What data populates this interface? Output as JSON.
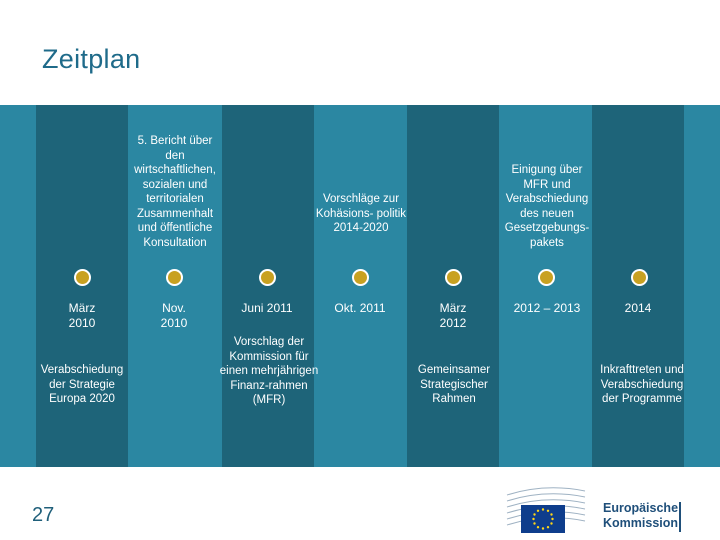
{
  "slide": {
    "title": "Zeitplan",
    "page_number": "27",
    "logo": {
      "line1": "Europäische",
      "line2": "Kommission"
    }
  },
  "timeline": [
    {
      "top": "",
      "date": "März 2010",
      "bottom": "Verabschiedung der Strategie Europa 2020"
    },
    {
      "top": "5. Bericht über den wirtschaftlichen, sozialen und territorialen Zusammenhalt und öffentliche Konsultation",
      "date": "Nov. 2010",
      "bottom": ""
    },
    {
      "top": "",
      "date": "Juni 2011",
      "bottom": "Vorschlag der Kommission für einen mehrjährigen Finanz-rahmen (MFR)"
    },
    {
      "top": "Vorschläge zur Kohäsions- politik 2014-2020",
      "date": "Okt. 2011",
      "bottom": ""
    },
    {
      "top": "",
      "date": "März 2012",
      "bottom": "Gemeinsamer Strategischer Rahmen"
    },
    {
      "top": "Einigung über MFR und Verabschiedung des neuen Gesetzgebungs- pakets",
      "date": "2012 – 2013",
      "bottom": ""
    },
    {
      "top": "",
      "date": "2014",
      "bottom": "Inkrafttreten und Verabschiedung der Programme"
    }
  ],
  "colors": {
    "light_band": "#2b87a2",
    "dark_column": "#1e6479",
    "marker": "#c8a121",
    "title": "#1f6b8a"
  }
}
